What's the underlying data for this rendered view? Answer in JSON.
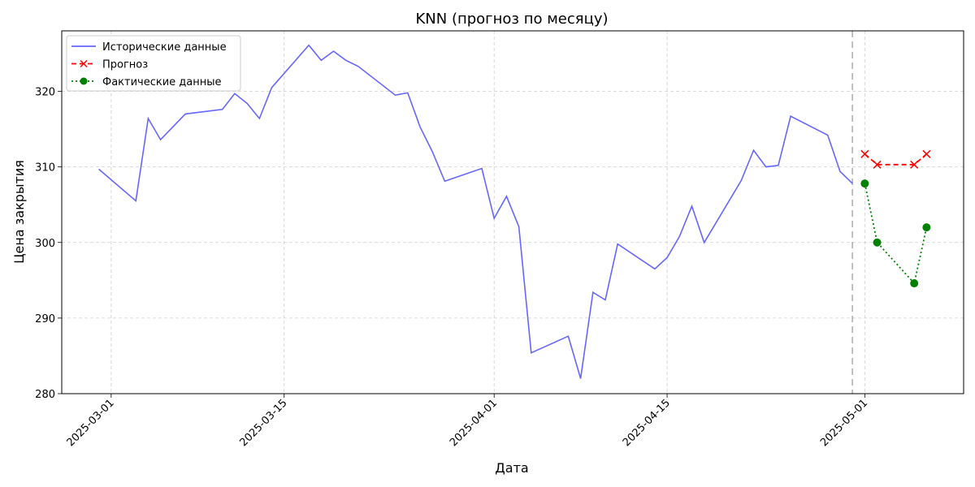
{
  "chart_data": {
    "type": "line",
    "title": "KNN (прогноз по месяцу)",
    "xlabel": "Дата",
    "ylabel": "Цена закрытия",
    "xlim": [
      "2025-02-25",
      "2025-05-09"
    ],
    "ylim": [
      280,
      328
    ],
    "x_ticks": [
      "2025-03-01",
      "2025-03-15",
      "2025-04-01",
      "2025-04-15",
      "2025-05-01"
    ],
    "y_ticks": [
      280,
      290,
      300,
      310,
      320
    ],
    "grid": true,
    "legend_position": "top-left",
    "cutoff_date": "2025-04-30",
    "series": [
      {
        "name": "Исторические данные",
        "color": "#6666ff",
        "style": "solid",
        "x": [
          "2025-02-28",
          "2025-03-03",
          "2025-03-04",
          "2025-03-05",
          "2025-03-07",
          "2025-03-10",
          "2025-03-11",
          "2025-03-12",
          "2025-03-13",
          "2025-03-14",
          "2025-03-17",
          "2025-03-18",
          "2025-03-19",
          "2025-03-20",
          "2025-03-21",
          "2025-03-24",
          "2025-03-25",
          "2025-03-26",
          "2025-03-27",
          "2025-03-28",
          "2025-03-31",
          "2025-04-01",
          "2025-04-02",
          "2025-04-03",
          "2025-04-04",
          "2025-04-07",
          "2025-04-08",
          "2025-04-09",
          "2025-04-10",
          "2025-04-11",
          "2025-04-14",
          "2025-04-15",
          "2025-04-16",
          "2025-04-17",
          "2025-04-18",
          "2025-04-21",
          "2025-04-22",
          "2025-04-23",
          "2025-04-24",
          "2025-04-25",
          "2025-04-28",
          "2025-04-29",
          "2025-04-30"
        ],
        "values": [
          309.7,
          305.5,
          316.4,
          313.6,
          317.0,
          317.6,
          319.7,
          318.4,
          316.4,
          320.5,
          326.1,
          324.1,
          325.3,
          324.1,
          323.3,
          319.5,
          319.8,
          315.3,
          312.0,
          308.1,
          309.8,
          303.2,
          306.1,
          302.1,
          285.4,
          287.6,
          282.0,
          293.4,
          292.4,
          299.8,
          296.5,
          298.0,
          300.8,
          304.8,
          300.0,
          308.2,
          312.2,
          310.0,
          310.2,
          316.7,
          314.2,
          309.4,
          307.8
        ]
      },
      {
        "name": "Прогноз",
        "color": "#ff0000",
        "style": "dashed",
        "marker": "x",
        "x": [
          "2025-05-01",
          "2025-05-02",
          "2025-05-05",
          "2025-05-06"
        ],
        "values": [
          311.7,
          310.3,
          310.3,
          311.7
        ]
      },
      {
        "name": "Фактические данные",
        "color": "#008000",
        "style": "dotted",
        "marker": "o",
        "x": [
          "2025-05-01",
          "2025-05-02",
          "2025-05-05",
          "2025-05-06"
        ],
        "values": [
          307.8,
          300.0,
          294.6,
          302.0
        ]
      }
    ]
  }
}
